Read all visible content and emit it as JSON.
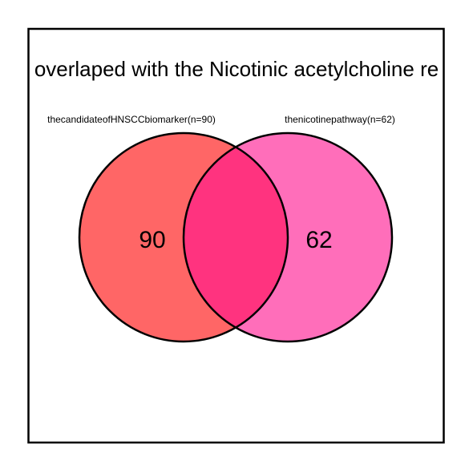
{
  "title": "overlaped with the Nicotinic acetylcholine re",
  "sets": [
    {
      "label": "thecandidateofHNSCCbiomarker(n=90)",
      "count": "90",
      "color": "#ff6666"
    },
    {
      "label": "thenicotinepathway(n=62)",
      "count": "62",
      "color": "#ff6eba"
    }
  ],
  "intersection": {
    "color": "#ff337f",
    "count": ""
  },
  "colors": {
    "border": "#000000",
    "background": "#ffffff"
  }
}
